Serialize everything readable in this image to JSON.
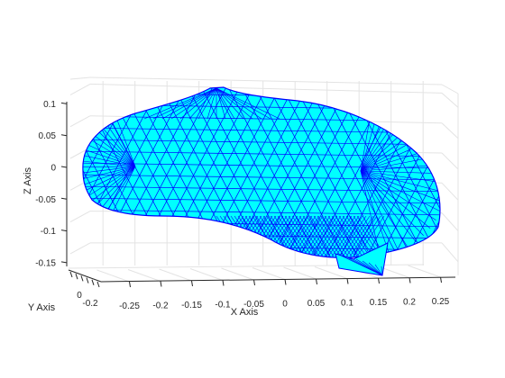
{
  "chart_data": {
    "type": "surface3d",
    "mesh": "triangulated surface (face color cyan, edge color blue)",
    "title": "",
    "xlabel": "X Axis",
    "ylabel": "Y Axis",
    "zlabel": "Z Axis",
    "xlim": [
      -0.28,
      0.27
    ],
    "zlim": [
      -0.17,
      0.13
    ],
    "x_ticks": [
      -0.25,
      -0.2,
      -0.15,
      -0.1,
      -0.05,
      0,
      0.05,
      0.1,
      0.15,
      0.2,
      0.25
    ],
    "x_tick_labels": [
      "-0.25",
      "-0.2",
      "-0.15",
      "-0.1",
      "-0.05",
      "0",
      "0.05",
      "0.1",
      "0.15",
      "0.2",
      "0.25"
    ],
    "y_ticks": [
      -0.2,
      0
    ],
    "y_tick_labels": [
      "-0.2",
      "0"
    ],
    "z_ticks": [
      -0.15,
      -0.1,
      -0.05,
      0,
      0.05,
      0.1
    ],
    "z_tick_labels": [
      "-0.15",
      "-0.1",
      "-0.05",
      "0",
      "0.05",
      "0.1"
    ],
    "grid": true,
    "face_color": "#00ffff",
    "edge_color": "#0000ff"
  }
}
